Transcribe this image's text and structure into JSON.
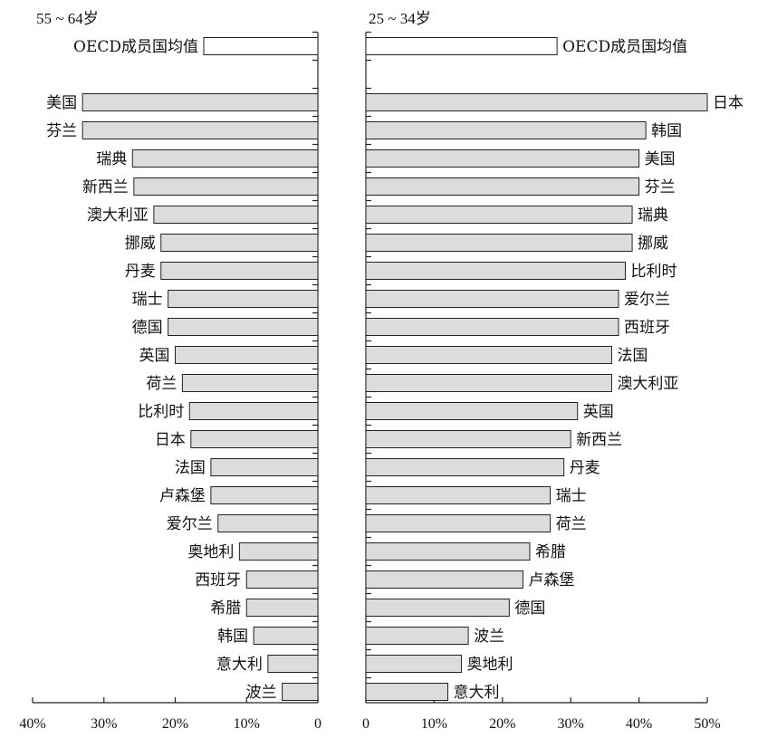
{
  "chart_data": [
    {
      "type": "bar",
      "orientation": "horizontal",
      "direction": "leftward",
      "title": "55 ~ 64岁",
      "xlim": [
        0,
        40
      ],
      "xticks": [
        "40%",
        "30%",
        "20%",
        "10%",
        "0"
      ],
      "xtick_values": [
        40,
        30,
        20,
        10,
        0
      ],
      "reference": {
        "category": "OECD成员国均值",
        "value": 16
      },
      "categories": [
        "美国",
        "芬兰",
        "瑞典",
        "新西兰",
        "澳大利亚",
        "挪威",
        "丹麦",
        "瑞士",
        "德国",
        "英国",
        "荷兰",
        "比利时",
        "日本",
        "法国",
        "卢森堡",
        "爱尔兰",
        "奥地利",
        "西班牙",
        "希腊",
        "韩国",
        "意大利",
        "波兰"
      ],
      "values": [
        33,
        33,
        26,
        25.8,
        23,
        22,
        22,
        21,
        21,
        20,
        19,
        18,
        17.8,
        15,
        15,
        14,
        11,
        10,
        10,
        9,
        7,
        5
      ]
    },
    {
      "type": "bar",
      "orientation": "horizontal",
      "direction": "rightward",
      "title": "25 ~ 34岁",
      "xlim": [
        0,
        50
      ],
      "xticks": [
        "0",
        "10%",
        "20%",
        "30%",
        "40%",
        "50%"
      ],
      "xtick_values": [
        0,
        10,
        20,
        30,
        40,
        50
      ],
      "reference": {
        "category": "OECD成员国均值",
        "value": 28
      },
      "categories": [
        "日本",
        "韩国",
        "美国",
        "芬兰",
        "瑞典",
        "挪威",
        "比利时",
        "爱尔兰",
        "西班牙",
        "法国",
        "澳大利亚",
        "英国",
        "新西兰",
        "丹麦",
        "瑞士",
        "荷兰",
        "希腊",
        "卢森堡",
        "德国",
        "波兰",
        "奥地利",
        "意大利"
      ],
      "values": [
        50,
        41,
        40,
        40,
        39,
        39,
        38,
        37,
        37,
        36,
        36,
        31,
        30,
        29,
        27,
        27,
        24,
        23,
        21,
        15,
        14,
        12
      ]
    }
  ]
}
